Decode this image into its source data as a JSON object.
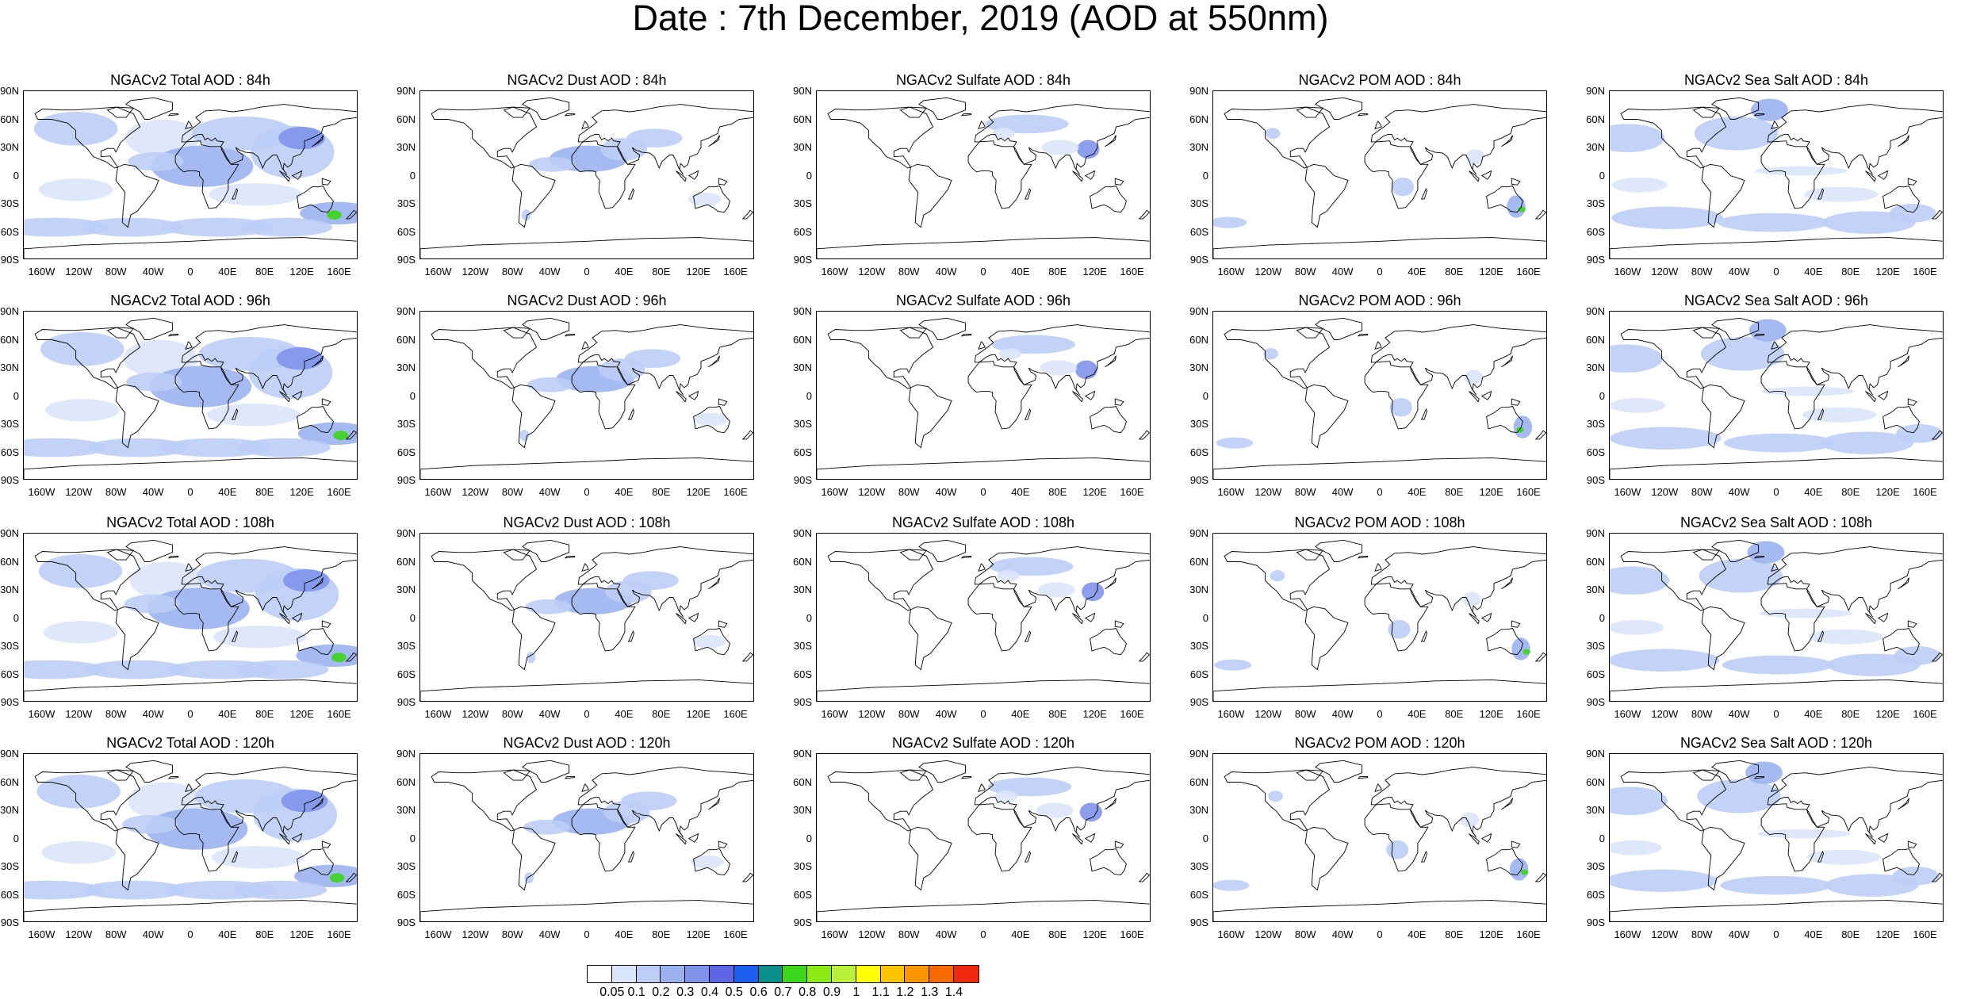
{
  "title": "Date : 7th December, 2019 (AOD at 550nm)",
  "chart_data": {
    "type": "heatmap",
    "grid": {
      "rows": 4,
      "cols": 5
    },
    "panels": [
      {
        "title": "NGACv2 Total AOD : 84h"
      },
      {
        "title": "NGACv2 Dust AOD : 84h"
      },
      {
        "title": "NGACv2 Sulfate AOD : 84h"
      },
      {
        "title": "NGACv2 POM AOD : 84h"
      },
      {
        "title": "NGACv2 Sea Salt AOD : 84h"
      },
      {
        "title": "NGACv2 Total AOD : 96h"
      },
      {
        "title": "NGACv2 Dust AOD : 96h"
      },
      {
        "title": "NGACv2 Sulfate AOD : 96h"
      },
      {
        "title": "NGACv2 POM AOD : 96h"
      },
      {
        "title": "NGACv2 Sea Salt AOD : 96h"
      },
      {
        "title": "NGACv2 Total AOD : 108h"
      },
      {
        "title": "NGACv2 Dust AOD : 108h"
      },
      {
        "title": "NGACv2 Sulfate AOD : 108h"
      },
      {
        "title": "NGACv2 POM AOD : 108h"
      },
      {
        "title": "NGACv2 Sea Salt AOD : 108h"
      },
      {
        "title": "NGACv2 Total AOD : 120h"
      },
      {
        "title": "NGACv2 Dust AOD : 120h"
      },
      {
        "title": "NGACv2 Sulfate AOD : 120h"
      },
      {
        "title": "NGACv2 POM AOD : 120h"
      },
      {
        "title": "NGACv2 Sea Salt  AOD : 120h"
      }
    ],
    "xlim": [
      -180,
      180
    ],
    "ylim": [
      -90,
      90
    ],
    "xticks": [
      "160W",
      "120W",
      "80W",
      "40W",
      "0",
      "40E",
      "80E",
      "120E",
      "160E"
    ],
    "xtick_values": [
      -160,
      -120,
      -80,
      -40,
      0,
      40,
      80,
      120,
      160
    ],
    "yticks": [
      "90N",
      "60N",
      "30N",
      "0",
      "30S",
      "60S",
      "90S"
    ],
    "ytick_values": [
      90,
      60,
      30,
      0,
      -30,
      -60,
      -90
    ],
    "colorbar": {
      "levels": [
        "0.05",
        "0.1",
        "0.2",
        "0.3",
        "0.4",
        "0.5",
        "0.6",
        "0.7",
        "0.8",
        "0.9",
        "1",
        "1.1",
        "1.2",
        "1.3",
        "1.4"
      ],
      "colors": [
        "#ffffff",
        "#dbe5fb",
        "#bccdf6",
        "#9bb2f0",
        "#7f93ea",
        "#5e66e6",
        "#1a5ff0",
        "#0a8f8a",
        "#3cd61c",
        "#8cea14",
        "#b8f03a",
        "#ffff00",
        "#fcc400",
        "#f99600",
        "#f56a00",
        "#ef2a0c"
      ]
    }
  }
}
